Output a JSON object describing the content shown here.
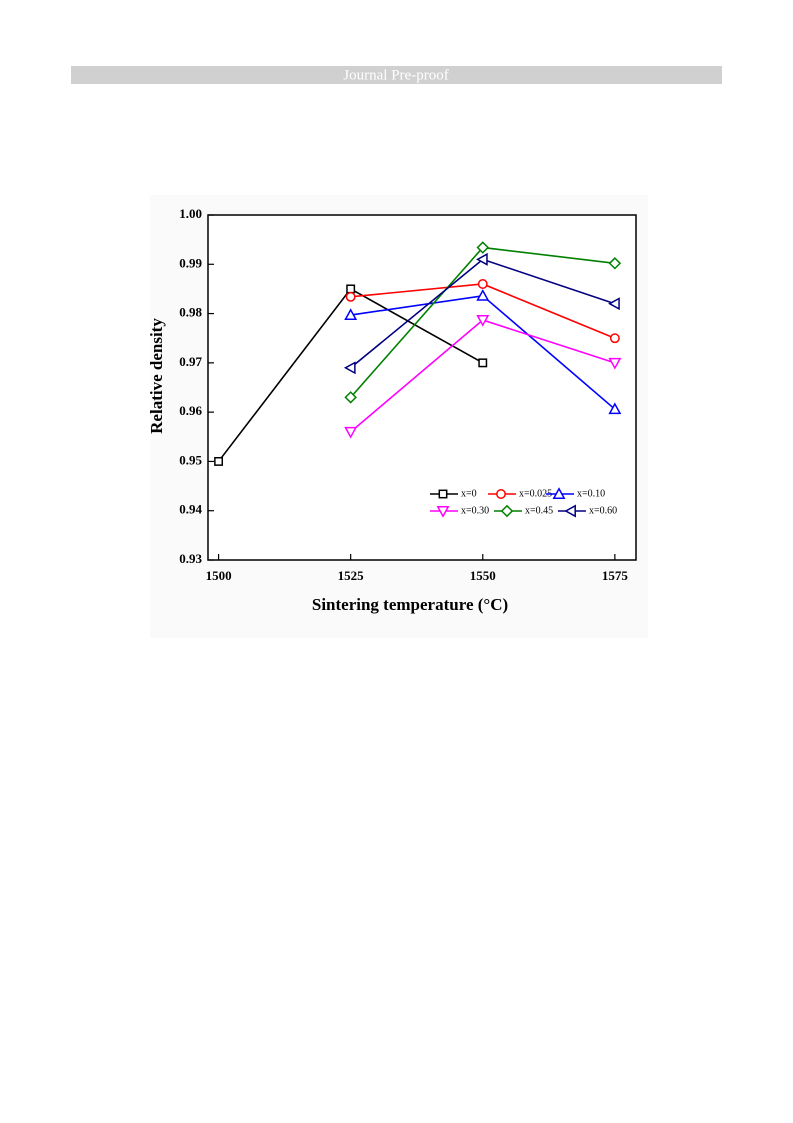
{
  "header": "Journal Pre-proof",
  "chart_data": {
    "type": "line",
    "xlabel": "Sintering temperature (°C)",
    "ylabel": "Relative density",
    "x": [
      1500,
      1525,
      1550,
      1575
    ],
    "xlim": [
      1498,
      1579
    ],
    "xticks": [
      1500,
      1525,
      1550,
      1575
    ],
    "ylim": [
      0.93,
      1.0
    ],
    "yticks": [
      0.93,
      0.94,
      0.95,
      0.96,
      0.97,
      0.98,
      0.99,
      {
        "value": 1.0,
        "label": "1.00"
      }
    ],
    "legend": "lower right",
    "series": [
      {
        "name": "x=0",
        "color": "#000000",
        "marker": "square",
        "values": [
          0.95,
          0.985,
          0.97,
          null
        ]
      },
      {
        "name": "x=0.025",
        "color": "#ff0000",
        "marker": "circle",
        "values": [
          null,
          0.9834,
          0.986,
          0.975
        ]
      },
      {
        "name": "x=0.10",
        "color": "#0000ff",
        "marker": "triangle-up",
        "values": [
          null,
          0.9797,
          0.9836,
          0.9606
        ]
      },
      {
        "name": "x=0.30",
        "color": "#ff00ff",
        "marker": "triangle-down",
        "values": [
          null,
          0.956,
          0.9787,
          0.97
        ]
      },
      {
        "name": "x=0.45",
        "color": "#008000",
        "marker": "diamond",
        "values": [
          null,
          0.963,
          0.9934,
          0.9902
        ]
      },
      {
        "name": "x=0.60",
        "color": "#000080",
        "marker": "triangle-left",
        "values": [
          null,
          0.969,
          0.991,
          0.982
        ]
      }
    ]
  }
}
